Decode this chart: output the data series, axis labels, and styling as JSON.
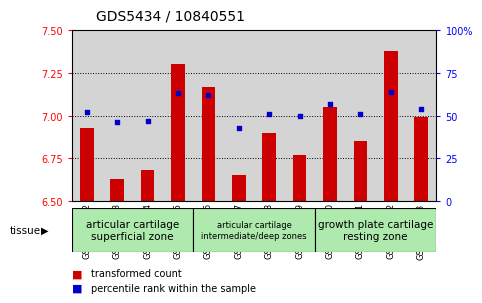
{
  "title": "GDS5434 / 10840551",
  "samples": [
    "GSM1310352",
    "GSM1310353",
    "GSM1310354",
    "GSM1310355",
    "GSM1310356",
    "GSM1310357",
    "GSM1310358",
    "GSM1310359",
    "GSM1310360",
    "GSM1310361",
    "GSM1310362",
    "GSM1310363"
  ],
  "transformed_count": [
    6.93,
    6.63,
    6.68,
    7.3,
    7.17,
    6.65,
    6.9,
    6.77,
    7.05,
    6.85,
    7.38,
    6.99
  ],
  "percentile_rank": [
    52,
    46,
    47,
    63,
    62,
    43,
    51,
    50,
    57,
    51,
    64,
    54
  ],
  "ylim_left": [
    6.5,
    7.5
  ],
  "ylim_right": [
    0,
    100
  ],
  "yticks_left": [
    6.5,
    6.75,
    7.0,
    7.25,
    7.5
  ],
  "yticks_right": [
    0,
    25,
    50,
    75,
    100
  ],
  "bar_color": "#cc0000",
  "dot_color": "#0000cc",
  "bar_width": 0.45,
  "col_bg_color": "#d4d4d4",
  "tissue_bg_color": "#aeeaae",
  "plot_bg": "#ffffff",
  "title_fontsize": 10,
  "tick_fontsize": 7,
  "sample_fontsize": 6,
  "tissue_fontsize_large": 7.5,
  "tissue_fontsize_small": 6.0,
  "legend_fontsize": 7,
  "group_boundaries": [
    {
      "start": 0,
      "end": 3,
      "label": "articular cartilage\nsuperficial zone",
      "font_size": 7.5
    },
    {
      "start": 4,
      "end": 7,
      "label": "articular cartilage\nintermediate/deep zones",
      "font_size": 6.0
    },
    {
      "start": 8,
      "end": 11,
      "label": "growth plate cartilage\nresting zone",
      "font_size": 7.5
    }
  ],
  "legend_items": [
    {
      "label": "transformed count",
      "color": "#cc0000"
    },
    {
      "label": "percentile rank within the sample",
      "color": "#0000cc"
    }
  ],
  "tissue_label": "tissue"
}
